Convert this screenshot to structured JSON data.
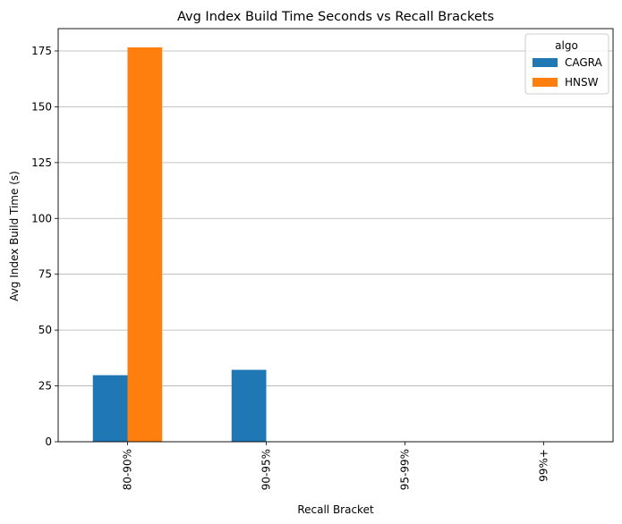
{
  "chart_data": {
    "type": "bar",
    "title": "Avg Index Build Time Seconds vs Recall Brackets",
    "xlabel": "Recall Bracket",
    "ylabel": "Avg Index Build Time (s)",
    "categories": [
      "80-90%",
      "90-95%",
      "95-99%",
      "99%+"
    ],
    "series": [
      {
        "name": "CAGRA",
        "color": "#1f77b4",
        "values": [
          29.8,
          32.2,
          0,
          0
        ]
      },
      {
        "name": "HNSW",
        "color": "#ff7f0e",
        "values": [
          176.6,
          0,
          0,
          0
        ]
      }
    ],
    "ylim": [
      0,
      185
    ],
    "yticks": [
      0,
      25,
      50,
      75,
      100,
      125,
      150,
      175
    ],
    "grid": "y",
    "legend": {
      "title": "algo",
      "placement": "top-right"
    }
  }
}
